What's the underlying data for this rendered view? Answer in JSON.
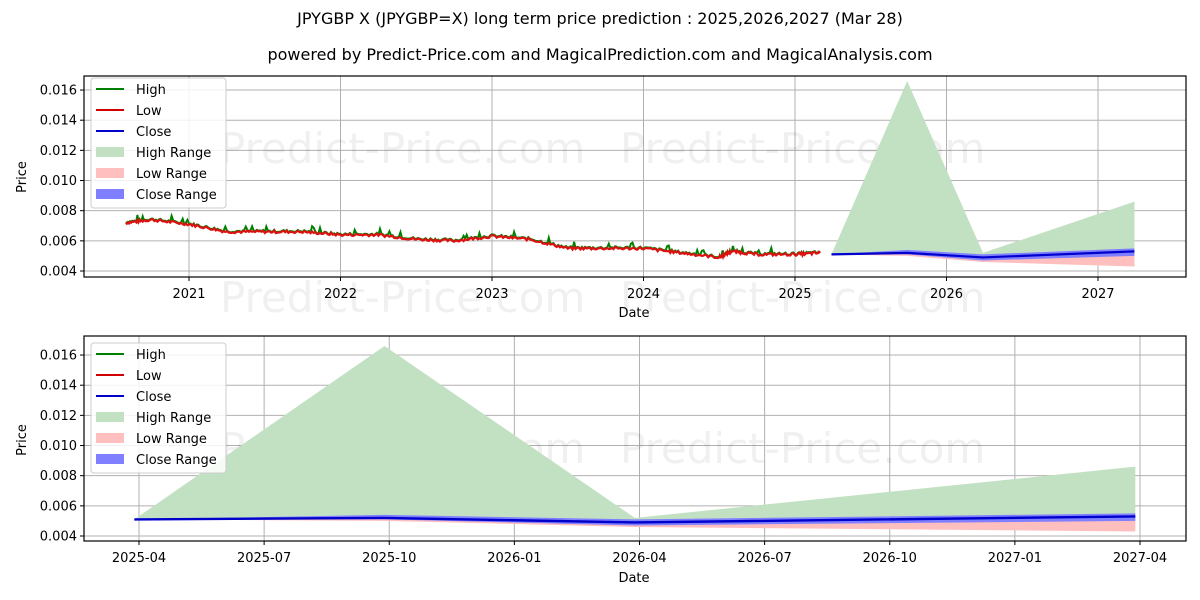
{
  "title": "JPYGBP X (JPYGBP=X) long term price prediction : 2025,2026,2027 (Mar 28)",
  "subtitle": "powered by Predict-Price.com and MagicalPrediction.com and MagicalAnalysis.com",
  "watermark": "Predict-Price.com",
  "colors": {
    "high": "#008000",
    "low": "#ff0000",
    "close": "#0000cc",
    "high_range": "#c2e0c2",
    "low_range": "#ffbfbf",
    "close_range": "#7f7fff",
    "grid": "#b0b0b0"
  },
  "legend": {
    "items": [
      {
        "label": "High",
        "kind": "line",
        "color": "#008000"
      },
      {
        "label": "Low",
        "kind": "line",
        "color": "#d00000"
      },
      {
        "label": "Close",
        "kind": "line",
        "color": "#0000cc"
      },
      {
        "label": "High Range",
        "kind": "patch",
        "color": "#c2e0c2"
      },
      {
        "label": "Low Range",
        "kind": "patch",
        "color": "#ffbfbf"
      },
      {
        "label": "Close Range",
        "kind": "patch",
        "color": "#7f7fff"
      }
    ]
  },
  "top_chart": {
    "xlabel": "Date",
    "ylabel": "Price",
    "xticks": [
      "2021",
      "2022",
      "2023",
      "2024",
      "2025",
      "2026",
      "2027"
    ],
    "yticks": [
      "0.004",
      "0.006",
      "0.008",
      "0.010",
      "0.012",
      "0.014",
      "0.016"
    ]
  },
  "bottom_chart": {
    "xlabel": "Date",
    "ylabel": "Price",
    "xticks": [
      "2025-04",
      "2025-07",
      "2025-10",
      "2026-01",
      "2026-04",
      "2026-07",
      "2026-10",
      "2027-01",
      "2027-04"
    ],
    "yticks": [
      "0.004",
      "0.006",
      "0.008",
      "0.010",
      "0.012",
      "0.014",
      "0.016"
    ]
  },
  "chart_data": [
    {
      "type": "line",
      "title": "JPYGBP X (JPYGBP=X) long term price prediction : 2025,2026,2027 (Mar 28)",
      "subtitle": "powered by Predict-Price.com and MagicalPrediction.com and MagicalAnalysis.com",
      "xlabel": "Date",
      "ylabel": "Price",
      "ylim": [
        0.0036,
        0.0172
      ],
      "xlim": [
        "2020-05",
        "2027-08"
      ],
      "grid": true,
      "legend_position": "upper left",
      "historical": {
        "x": [
          "2020-08",
          "2020-10",
          "2021-01",
          "2021-04",
          "2021-07",
          "2021-10",
          "2022-01",
          "2022-04",
          "2022-07",
          "2022-10",
          "2023-01",
          "2023-04",
          "2023-07",
          "2023-10",
          "2024-01",
          "2024-04",
          "2024-07",
          "2024-08",
          "2024-10",
          "2025-01",
          "2025-03"
        ],
        "close": [
          0.0072,
          0.0074,
          0.0071,
          0.0066,
          0.0066,
          0.0066,
          0.0064,
          0.0064,
          0.0061,
          0.006,
          0.0063,
          0.0061,
          0.0055,
          0.0055,
          0.0055,
          0.0052,
          0.0049,
          0.0053,
          0.0051,
          0.0051,
          0.0052
        ]
      },
      "forecast": {
        "x": [
          "2025-03-28",
          "2025-09-28",
          "2026-03-28",
          "2027-03-28"
        ],
        "high": [
          0.0051,
          0.0166,
          0.0052,
          0.0086
        ],
        "close": [
          0.0051,
          0.0052,
          0.0049,
          0.0053
        ],
        "close_range_upper": [
          0.0051,
          0.0054,
          0.0051,
          0.0055
        ],
        "close_range_lower": [
          0.0051,
          0.0051,
          0.0047,
          0.005
        ],
        "low": [
          0.0051,
          0.005,
          0.0046,
          0.0043
        ]
      }
    },
    {
      "type": "area",
      "title": "Forecast detail",
      "xlabel": "Date",
      "ylabel": "Price",
      "ylim": [
        0.0036,
        0.0172
      ],
      "xlim": [
        "2025-02-15",
        "2027-05-10"
      ],
      "grid": true,
      "legend_position": "upper left",
      "x": [
        "2025-03-28",
        "2025-09-28",
        "2026-03-28",
        "2027-03-28"
      ],
      "series": [
        {
          "name": "High Range",
          "values": [
            0.0051,
            0.0166,
            0.0052,
            0.0086
          ]
        },
        {
          "name": "Close",
          "values": [
            0.0051,
            0.0052,
            0.0049,
            0.0053
          ]
        },
        {
          "name": "Close Range upper",
          "values": [
            0.0051,
            0.0054,
            0.0051,
            0.0055
          ]
        },
        {
          "name": "Close Range lower",
          "values": [
            0.0051,
            0.0051,
            0.0047,
            0.005
          ]
        },
        {
          "name": "Low Range",
          "values": [
            0.0051,
            0.005,
            0.0046,
            0.0043
          ]
        }
      ]
    }
  ]
}
